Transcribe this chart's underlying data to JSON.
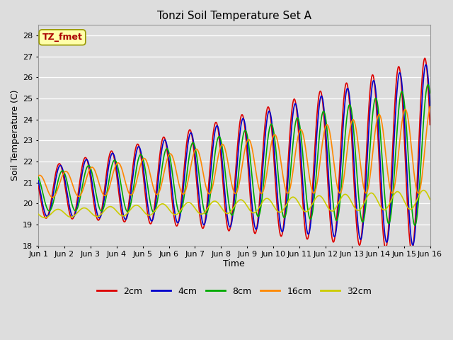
{
  "title": "Tonzi Soil Temperature Set A",
  "xlabel": "Time",
  "ylabel": "Soil Temperature (C)",
  "annotation": "TZ_fmet",
  "annotation_color": "#aa0000",
  "annotation_bg": "#ffffaa",
  "annotation_edge": "#999900",
  "ylim": [
    18.0,
    28.5
  ],
  "yticks": [
    18.0,
    19.0,
    20.0,
    21.0,
    22.0,
    23.0,
    24.0,
    25.0,
    26.0,
    27.0,
    28.0
  ],
  "xlim": [
    1,
    16
  ],
  "background_color": "#dddddd",
  "fig_background": "#dddddd",
  "grid_color": "#ffffff",
  "xtick_labels": [
    "Jun 1",
    "Jun 2",
    "Jun 3",
    "Jun 4",
    "Jun 5",
    "Jun 6",
    "Jun 7",
    "Jun 8",
    "Jun 9",
    "Jun 10",
    "Jun 11",
    "Jun 12",
    "Jun 13",
    "Jun 14",
    "Jun 15",
    "Jun 16"
  ],
  "legend_labels": [
    "2cm",
    "4cm",
    "8cm",
    "16cm",
    "32cm"
  ],
  "legend_colors": [
    "#dd0000",
    "#0000cc",
    "#00aa00",
    "#ff8800",
    "#cccc00"
  ],
  "series_linewidth": 1.2,
  "title_fontsize": 11,
  "label_fontsize": 9,
  "tick_fontsize": 8,
  "legend_fontsize": 9
}
